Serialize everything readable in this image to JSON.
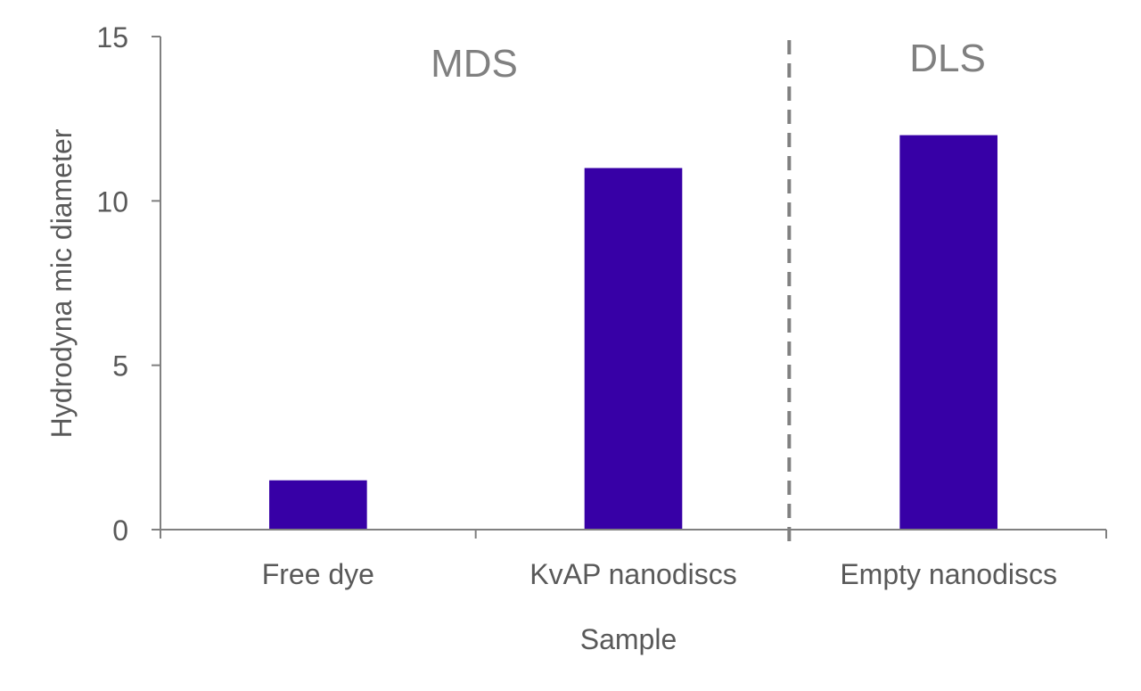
{
  "chart_data": {
    "type": "bar",
    "title": "",
    "xlabel": "Sample",
    "ylabel": "Hydrodyna mic diameter",
    "categories": [
      "Free dye",
      "KvAP nanodiscs",
      "Empty nanodiscs"
    ],
    "values": [
      1.5,
      11,
      12
    ],
    "ylim": [
      0,
      15
    ],
    "yticks": [
      "0",
      "5",
      "10",
      "15"
    ],
    "ytick_values": [
      0,
      5,
      10,
      15
    ],
    "grid": false,
    "bar_color": "#3700A6",
    "axis_color": "#808080",
    "annotations": {
      "left_group": "MDS",
      "right_group": "DLS",
      "divider": "dashed vertical line between KvAP nanodiscs and Empty nanodiscs"
    }
  }
}
